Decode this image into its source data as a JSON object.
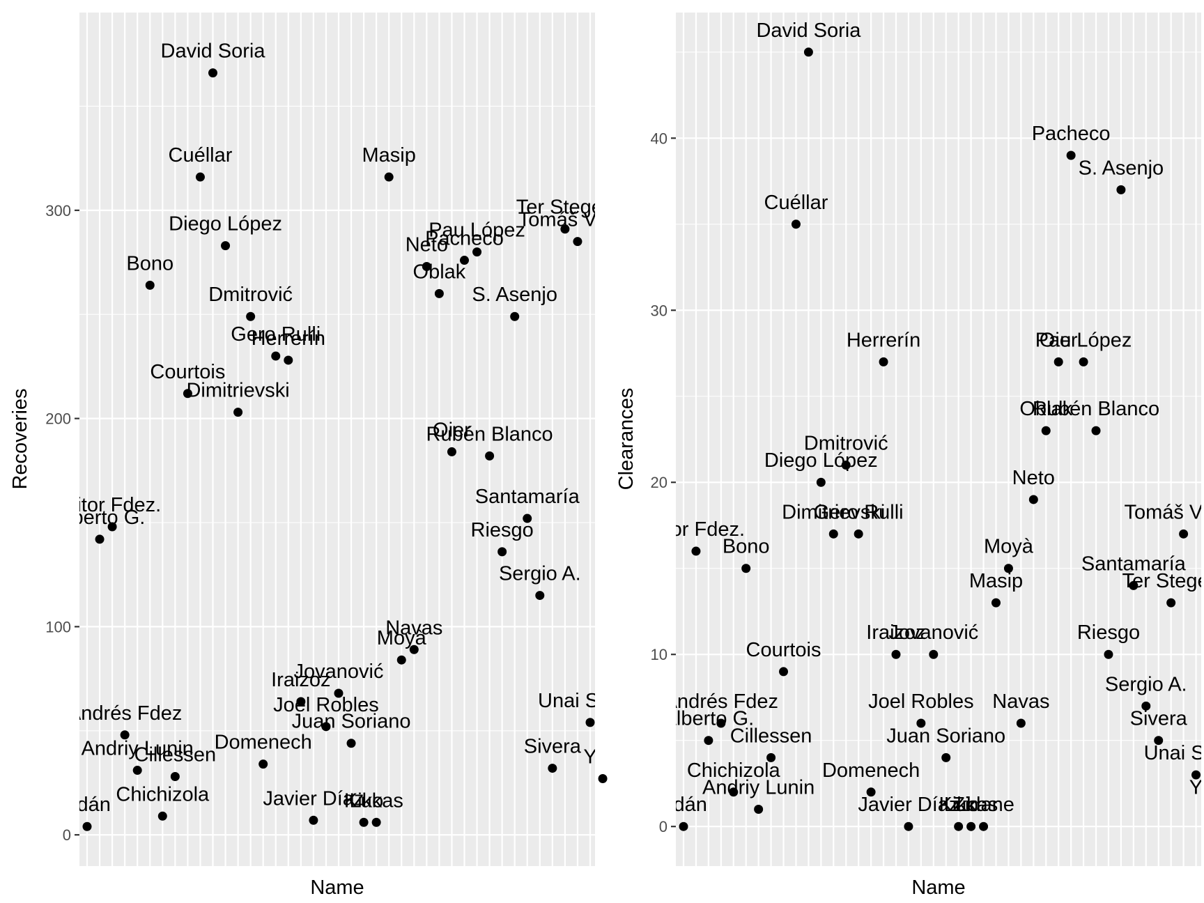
{
  "chart_data": [
    {
      "type": "scatter",
      "xlabel": "Name",
      "ylabel": "Recoveries",
      "x": [
        "Adán",
        "Alberto G.",
        "Aitor Fdez.",
        "Andrés Fdez",
        "Andriy Lunin",
        "Bono",
        "Chichizola",
        "Cillessen",
        "Courtois",
        "Cuéllar",
        "David Soria",
        "Diego López",
        "Dimitrievski",
        "Dmitrović",
        "Domenech",
        "Gero Rulli",
        "Herrerín",
        "Iraizoz",
        "Javier Díaz",
        "Joel Robles",
        "Jovanović",
        "Juan Soriano",
        "Kiko",
        "Lukas",
        "Masip",
        "Moyà",
        "Navas",
        "Neto",
        "Oblak",
        "Oier",
        "Pacheco",
        "Pau López",
        "Rubén Blanco",
        "Riesgo",
        "S. Asenjo",
        "Santamaría",
        "Sergio A.",
        "Sivera",
        "Ter Stegen",
        "Tomáš Vaclík",
        "Unai Simón",
        "Yoel"
      ],
      "y": [
        4,
        142,
        148,
        48,
        31,
        264,
        9,
        28,
        212,
        316,
        366,
        283,
        203,
        249,
        34,
        230,
        228,
        64,
        7,
        52,
        68,
        44,
        6,
        6,
        316,
        84,
        89,
        273,
        260,
        184,
        276,
        280,
        182,
        136,
        249,
        152,
        115,
        32,
        291,
        285,
        54,
        27
      ],
      "ylim": [
        -15,
        395
      ],
      "yticks": [
        0,
        100,
        200,
        300
      ],
      "grid": true
    },
    {
      "type": "scatter",
      "xlabel": "Name",
      "ylabel": "Clearances",
      "x": [
        "Adán",
        "Aitor Fdez.",
        "Alberto G.",
        "Andrés Fdez",
        "Chichizola",
        "Bono",
        "Andriy Lunin",
        "Cillessen",
        "Courtois",
        "Cuéllar",
        "David Soria",
        "Diego López",
        "Dimitrievski",
        "Dmitrović",
        "Gero Rulli",
        "Domenech",
        "Herrerín",
        "Iraizoz",
        "Javier Díaz",
        "Joel Robles",
        "Jovanović",
        "Juan Soriano",
        "Kiko",
        "Lukas",
        "Zidane",
        "Masip",
        "Moyà",
        "Navas",
        "Neto",
        "Oblak",
        "Oier",
        "Pacheco",
        "Pau López",
        "Rubén Blanco",
        "Riesgo",
        "S. Asenjo",
        "Santamaría",
        "Sergio A.",
        "Sivera",
        "Ter Stegen",
        "Tomáš Vaclík",
        "Unai Simón",
        "Yoel"
      ],
      "y": [
        0,
        16,
        5,
        6,
        2,
        15,
        1,
        4,
        9,
        35,
        45,
        20,
        17,
        21,
        17,
        2,
        27,
        10,
        0,
        6,
        10,
        4,
        0,
        0,
        0,
        13,
        15,
        6,
        19,
        23,
        27,
        39,
        27,
        23,
        10,
        37,
        14,
        7,
        5,
        13,
        17,
        3,
        1
      ],
      "ylim": [
        -2.3,
        47.3
      ],
      "yticks": [
        0,
        10,
        20,
        30,
        40
      ],
      "grid": true
    }
  ]
}
